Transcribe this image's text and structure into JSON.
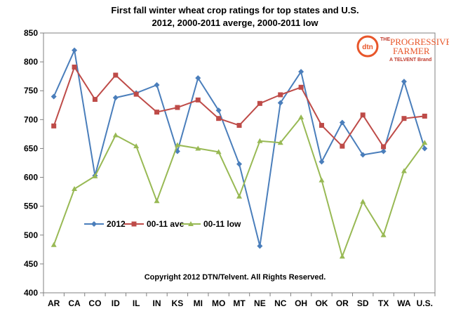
{
  "chart_data": {
    "type": "line",
    "title_line1": "First fall winter wheat crop ratings for top states and U.S.",
    "title_line2": "2012, 2000-2011 averge, 2000-2011 low",
    "xlabel": "",
    "ylabel": "",
    "ylim": [
      400,
      850
    ],
    "ytick_step": 50,
    "categories": [
      "AR",
      "CA",
      "CO",
      "ID",
      "IL",
      "IN",
      "KS",
      "MI",
      "MO",
      "MT",
      "NE",
      "NC",
      "OH",
      "OK",
      "OR",
      "SD",
      "TX",
      "WA",
      "U.S."
    ],
    "series": [
      {
        "name": "2012",
        "marker": "diamond",
        "color": "#4a7ebb",
        "values": [
          740,
          820,
          603,
          738,
          746,
          760,
          645,
          772,
          716,
          623,
          481,
          729,
          783,
          627,
          695,
          639,
          645,
          766,
          650
        ]
      },
      {
        "name": "00-11 ave",
        "marker": "square",
        "color": "#be4b48",
        "values": [
          689,
          791,
          735,
          777,
          744,
          713,
          721,
          734,
          702,
          690,
          728,
          743,
          756,
          690,
          654,
          708,
          653,
          702,
          706
        ]
      },
      {
        "name": "00-11 low",
        "marker": "triangle",
        "color": "#98b954",
        "values": [
          483,
          580,
          602,
          673,
          654,
          559,
          656,
          650,
          644,
          567,
          663,
          660,
          704,
          595,
          463,
          558,
          500,
          611,
          660
        ]
      }
    ],
    "grid": false,
    "legend_placement": "lower-left inside plot",
    "annotation": "Copyright 2012 DTN/Telvent. All Rights Reserved."
  },
  "logo": {
    "mark": "dtn",
    "brand_the": "THE",
    "brand_line1": "PROGRESSIVE",
    "brand_line2": "FARMER",
    "brand_tag": "A TELVENT Brand",
    "accent": "#e8562a"
  }
}
